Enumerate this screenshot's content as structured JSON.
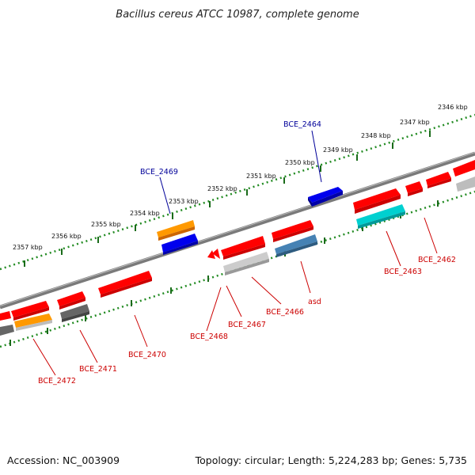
{
  "map": {
    "title": "Bacillus cereus ATCC 10987, complete genome",
    "accession": "Accession: NC_003909",
    "summary": "Topology: circular; Length: 5,224,283 bp; Genes: 5,735"
  },
  "colors": {
    "backbone": "#808080",
    "axis_dots": "#228B22",
    "red": "#ff0000",
    "blue": "#0000ee",
    "orange": "#ff9900",
    "cyan": "#00c8c8",
    "steel": "#4682b4",
    "gray": "#bdbdbd",
    "darkgray": "#666666",
    "label_red": "#cc0000",
    "label_blue": "#000099"
  },
  "kbp_ticks": [
    "2357 kbp",
    "2356 kbp",
    "2355 kbp",
    "2354 kbp",
    "2353 kbp",
    "2352 kbp",
    "2351 kbp",
    "2350 kbp",
    "2349 kbp",
    "2348 kbp",
    "2347 kbp",
    "2346 kbp"
  ],
  "gene_labels": [
    "BCE_2464",
    "BCE_2469",
    "BCE_2462",
    "BCE_2463",
    "asd",
    "BCE_2466",
    "BCE_2467",
    "BCE_2468",
    "BCE_2470",
    "BCE_2471",
    "BCE_2472"
  ]
}
